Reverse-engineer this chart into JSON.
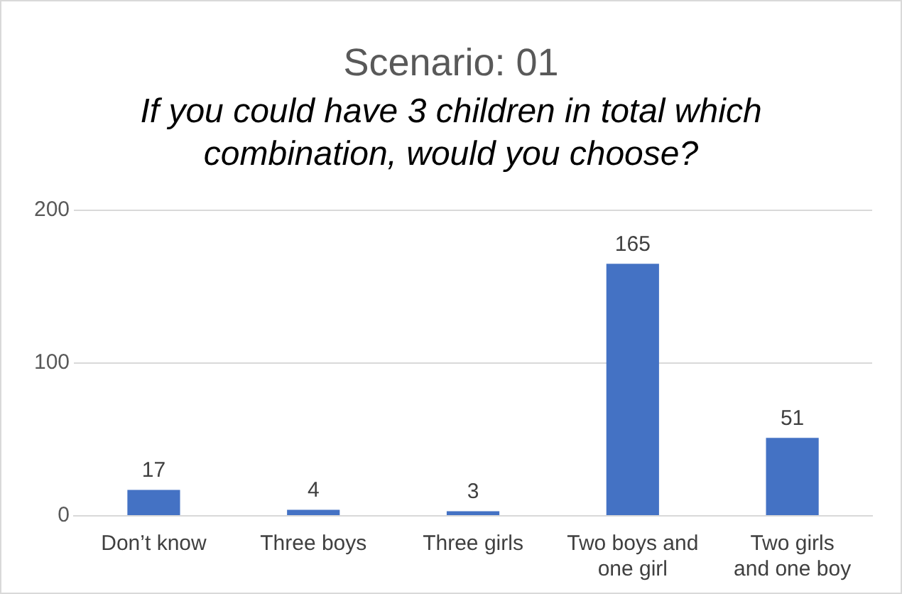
{
  "chart_data": {
    "type": "bar",
    "title": "Scenario: 01",
    "subtitle": "If you could have 3 children in total which combination, would you choose?",
    "categories": [
      "Don’t know",
      "Three boys",
      "Three girls",
      "Two boys and one girl",
      "Two girls and one boy"
    ],
    "values": [
      17,
      4,
      3,
      165,
      51
    ],
    "color": "#4472c4",
    "ylim": [
      0,
      200
    ],
    "yticks": [
      0,
      100,
      200
    ],
    "grid": "y",
    "data_labels": true
  }
}
